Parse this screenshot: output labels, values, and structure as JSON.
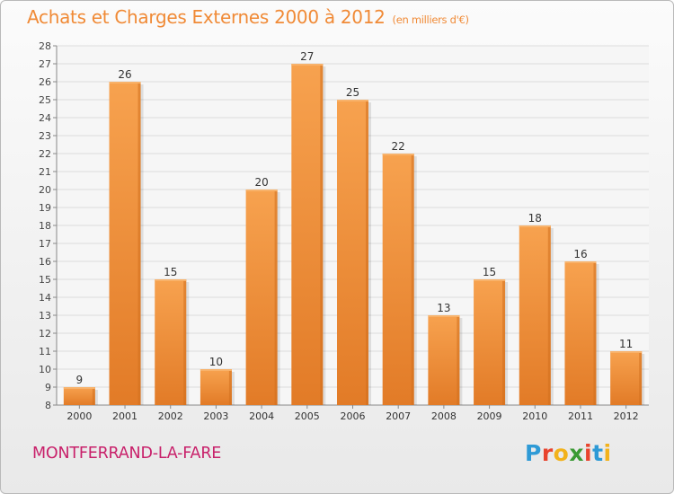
{
  "title": {
    "text": "Achats et Charges Externes 2000 à 2012",
    "unit": "(en milliers d'€)"
  },
  "town": "MONTFERRAND-LA-FARE",
  "logo": {
    "letters": [
      "P",
      "r",
      "o",
      "x",
      "i",
      "t",
      "i"
    ],
    "colors": [
      "#2e9ad6",
      "#e8432d",
      "#f2b21b",
      "#3a9a34",
      "#e8432d",
      "#2e9ad6",
      "#f2b21b"
    ]
  },
  "chart_data": {
    "type": "bar",
    "categories": [
      "2000",
      "2001",
      "2002",
      "2003",
      "2004",
      "2005",
      "2006",
      "2007",
      "2008",
      "2009",
      "2010",
      "2011",
      "2012"
    ],
    "values": [
      9,
      26,
      15,
      10,
      20,
      27,
      25,
      22,
      13,
      15,
      18,
      16,
      11
    ],
    "ylim": [
      8,
      28
    ],
    "yticks": [
      8,
      9,
      10,
      11,
      12,
      13,
      14,
      15,
      16,
      17,
      18,
      19,
      20,
      21,
      22,
      23,
      24,
      25,
      26,
      27,
      28
    ],
    "grid": true,
    "bar_color": "#f09a45",
    "title": "Achats et Charges Externes 2000 à 2012",
    "xlabel": "",
    "ylabel": ""
  }
}
